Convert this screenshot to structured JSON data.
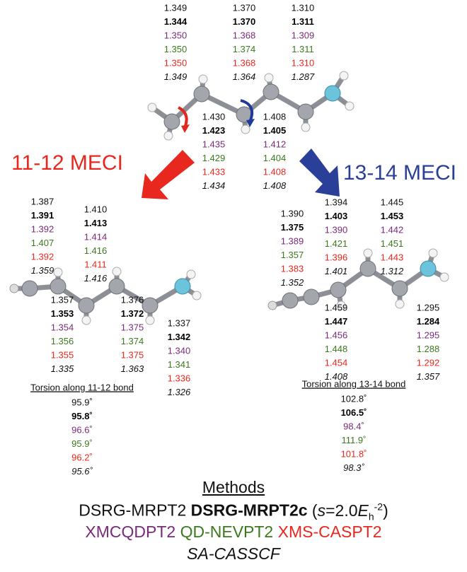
{
  "top": {
    "stacks": [
      [
        "1.349",
        "1.344",
        "1.350",
        "1.350",
        "1.350",
        "1.349"
      ],
      [
        "1.370",
        "1.370",
        "1.368",
        "1.374",
        "1.368",
        "1.364"
      ],
      [
        "1.310",
        "1.311",
        "1.309",
        "1.311",
        "1.310",
        "1.287"
      ],
      [
        "1.430",
        "1.423",
        "1.435",
        "1.429",
        "1.433",
        "1.434"
      ],
      [
        "1.408",
        "1.405",
        "1.412",
        "1.404",
        "1.408",
        "1.408"
      ]
    ]
  },
  "left": {
    "title": "11-12 MECI",
    "stacks": [
      [
        "1.387",
        "1.391",
        "1.392",
        "1.407",
        "1.392",
        "1.359"
      ],
      [
        "1.410",
        "1.413",
        "1.414",
        "1.416",
        "1.411",
        "1.416"
      ],
      [
        "1.357",
        "1.353",
        "1.354",
        "1.356",
        "1.355",
        "1.335"
      ],
      [
        "1.376",
        "1.372",
        "1.375",
        "1.374",
        "1.375",
        "1.363"
      ],
      [
        "1.337",
        "1.342",
        "1.340",
        "1.341",
        "1.336",
        "1.326"
      ]
    ],
    "torsion": {
      "label": "Torsion along 11-12 bond",
      "values": [
        "95.9˚",
        "95.8˚",
        "96.6˚",
        "95.9˚",
        "96.2˚",
        "95.6˚"
      ]
    }
  },
  "right": {
    "title": "13-14 MECI",
    "stacks": [
      [
        "1.390",
        "1.375",
        "1.389",
        "1.357",
        "1.383",
        "1.352"
      ],
      [
        "1.394",
        "1.403",
        "1.390",
        "1.421",
        "1.396",
        "1.401"
      ],
      [
        "1.445",
        "1.453",
        "1.442",
        "1.451",
        "1.443",
        "1.312"
      ],
      [
        "1.459",
        "1.447",
        "1.456",
        "1.448",
        "1.454",
        "1.408"
      ],
      [
        "1.295",
        "1.284",
        "1.295",
        "1.288",
        "1.292",
        "1.357"
      ]
    ],
    "torsion": {
      "label": "Torsion along 13-14 bond",
      "values": [
        "102.8˚",
        "106.5˚",
        "98.4˚",
        "111.9˚",
        "101.8˚",
        "98.3˚"
      ]
    }
  },
  "legend": {
    "title": "Methods",
    "methods": [
      "DSRG-MRPT2",
      "DSRG-MRPT2c",
      "XMCQDPT2",
      "QD-NEVPT2",
      "XMS-CASPT2",
      "SA-CASSCF"
    ],
    "note": [
      "(",
      "s",
      "=2.0",
      "E",
      "h",
      "-2",
      ")"
    ]
  }
}
